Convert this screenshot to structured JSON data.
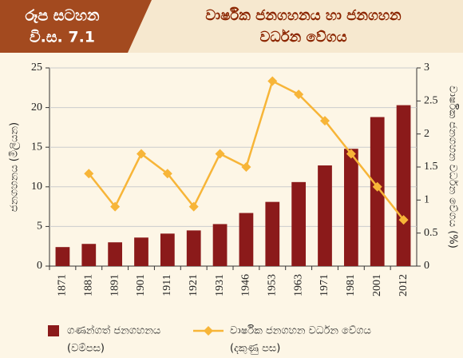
{
  "header": {
    "label_lines": [
      "රූප සටහන",
      "වි.ස. 7.1"
    ]
  },
  "chart_data": {
    "type": "bar-line",
    "title_lines": [
      "වාර්ෂික ජනගහනය හා ජනගහන",
      "වර්ධන වේගය"
    ],
    "ylabel": "ජනගහනය (මිලියන)",
    "y2label": "වාර්ෂික ජනගහන වර්ධන වේගය (%)",
    "categories": [
      "1871",
      "1881",
      "1891",
      "1901",
      "1911",
      "1921",
      "1931",
      "1946",
      "1953",
      "1963",
      "1971",
      "1981",
      "2001",
      "2012"
    ],
    "series": [
      {
        "name": "ගණන්ගත් ජනගහනය",
        "note": "(වම්පස)",
        "type": "bar",
        "color": "#8b1a1a",
        "axis": "y",
        "values": [
          2.4,
          2.8,
          3.0,
          3.6,
          4.1,
          4.5,
          5.3,
          6.7,
          8.1,
          10.6,
          12.7,
          14.8,
          18.8,
          20.3
        ]
      },
      {
        "name": "වාර්ෂික ජනගහන වර්ධන වේගය",
        "note": "(දකුණු පස)",
        "type": "line",
        "color": "#f7b538",
        "axis": "y2",
        "values": [
          null,
          1.4,
          0.9,
          1.7,
          1.4,
          0.9,
          1.7,
          1.5,
          2.8,
          2.6,
          2.2,
          1.7,
          1.2,
          0.7
        ]
      }
    ],
    "ylim": [
      0,
      25
    ],
    "yticks": [
      0,
      5,
      10,
      15,
      20,
      25
    ],
    "y2lim": [
      0,
      3
    ],
    "y2ticks": [
      0,
      0.5,
      1,
      1.5,
      2,
      2.5,
      3
    ]
  }
}
